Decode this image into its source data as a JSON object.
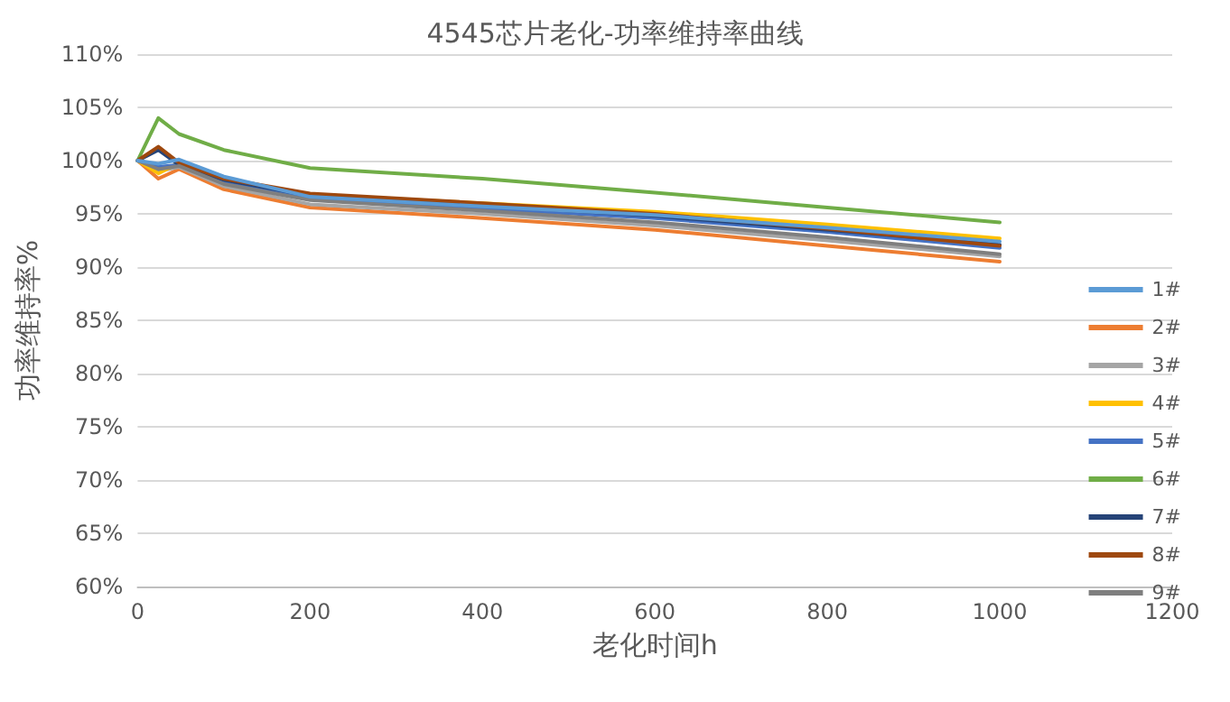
{
  "chart_data": {
    "type": "line",
    "title": "4545芯片老化-功率维持率曲线",
    "xlabel": "老化时间h",
    "ylabel": "功率维持率%",
    "x": [
      0,
      24,
      48,
      100,
      200,
      400,
      600,
      800,
      1000
    ],
    "xlim": [
      0,
      1200
    ],
    "xticks": [
      0,
      200,
      400,
      600,
      800,
      1000,
      1200
    ],
    "ylim": [
      60,
      110
    ],
    "yticks": [
      {
        "value": 60,
        "label": "60%"
      },
      {
        "value": 65,
        "label": "65%"
      },
      {
        "value": 70,
        "label": "70%"
      },
      {
        "value": 75,
        "label": "75%"
      },
      {
        "value": 80,
        "label": "80%"
      },
      {
        "value": 85,
        "label": "85%"
      },
      {
        "value": 90,
        "label": "90%"
      },
      {
        "value": 95,
        "label": "95%"
      },
      {
        "value": 100,
        "label": "100%"
      },
      {
        "value": 105,
        "label": "105%"
      },
      {
        "value": 110,
        "label": "110%"
      }
    ],
    "grid": "y",
    "legend": "right",
    "marker": "none",
    "line_style": "solid",
    "series": [
      {
        "name": "1#",
        "color": "#5b9bd5",
        "values": [
          100,
          99.7,
          100.1,
          98.5,
          96.6,
          95.7,
          94.9,
          93.7,
          92.4
        ]
      },
      {
        "name": "2#",
        "color": "#ed7d31",
        "values": [
          100,
          98.3,
          99.2,
          97.3,
          95.6,
          94.6,
          93.5,
          92,
          90.5
        ]
      },
      {
        "name": "3#",
        "color": "#a5a5a5",
        "values": [
          100,
          99,
          99.4,
          97.6,
          95.9,
          95,
          93.9,
          92.5,
          91
        ]
      },
      {
        "name": "4#",
        "color": "#ffc000",
        "values": [
          100,
          98.8,
          99.8,
          98.2,
          96.8,
          96,
          95.2,
          94,
          92.7
        ]
      },
      {
        "name": "5#",
        "color": "#4472c4",
        "values": [
          100,
          99.4,
          99.6,
          98,
          96.5,
          95.5,
          94.6,
          93.3,
          91.8
        ]
      },
      {
        "name": "6#",
        "color": "#70ad47",
        "values": [
          100,
          104,
          102.5,
          101,
          99.3,
          98.3,
          97,
          95.6,
          94.2
        ]
      },
      {
        "name": "7#",
        "color": "#264478",
        "values": [
          100,
          101,
          99.6,
          98.2,
          96.7,
          95.8,
          94.8,
          93.5,
          92.1
        ]
      },
      {
        "name": "8#",
        "color": "#9e480e",
        "values": [
          100,
          101.3,
          99.8,
          98.3,
          96.9,
          96,
          95,
          93.6,
          92
        ]
      },
      {
        "name": "9#",
        "color": "#7f7f7f",
        "values": [
          100,
          99.2,
          99.5,
          97.8,
          96.3,
          95.3,
          94.2,
          92.8,
          91.2
        ]
      }
    ]
  }
}
